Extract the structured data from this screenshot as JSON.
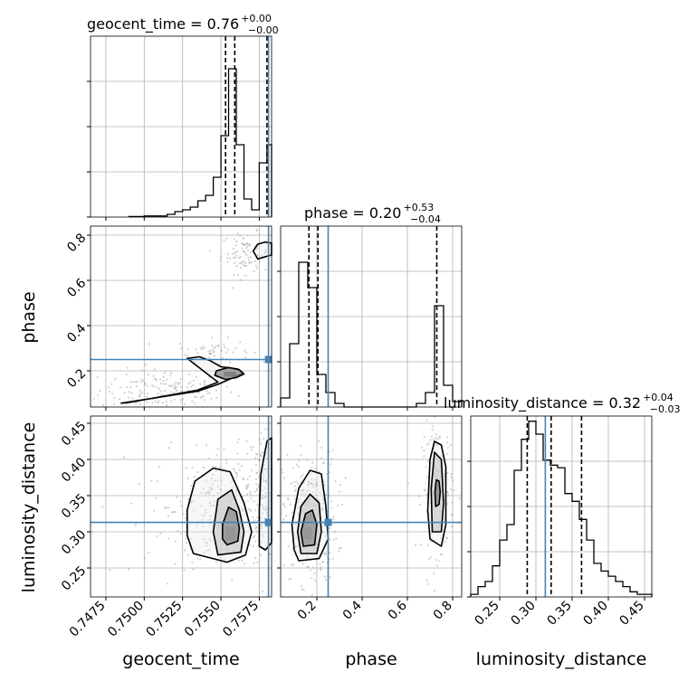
{
  "colors": {
    "truth": "#4682b4",
    "hist": "#000000",
    "grid": "#b0b0b0",
    "contour": "#000000",
    "samples": "#9a9a9a"
  },
  "titles": {
    "geocent_time": {
      "main": "geocent_time = 0.76",
      "plus": "+0.00",
      "minus": "−0.00"
    },
    "phase": {
      "main": "phase = 0.20",
      "plus": "+0.53",
      "minus": "−0.04"
    },
    "luminosity_distance": {
      "main": "luminosity_distance = 0.32",
      "plus": "+0.04",
      "minus": "−0.03"
    }
  },
  "chart_data": {
    "type": "corner",
    "parameters": [
      "geocent_time",
      "phase",
      "luminosity_distance"
    ],
    "axis_labels": {
      "x": [
        "geocent_time",
        "phase",
        "luminosity_distance"
      ],
      "y": [
        "phase",
        "luminosity_distance"
      ]
    },
    "ranges": {
      "geocent_time": [
        0.7465,
        0.7583
      ],
      "phase": [
        0.04,
        0.84
      ],
      "luminosity_distance": [
        0.21,
        0.46
      ]
    },
    "ticks": {
      "geocent_time": {
        "values": [
          0.7475,
          0.75,
          0.7525,
          0.755,
          0.7575
        ],
        "labels": [
          "0.7475",
          "0.7500",
          "0.7525",
          "0.7550",
          "0.7575"
        ]
      },
      "phase": {
        "values": [
          0.2,
          0.4,
          0.6,
          0.8
        ],
        "labels": [
          "0.2",
          "0.4",
          "0.6",
          "0.8"
        ]
      },
      "luminosity_distance": {
        "values": [
          0.25,
          0.3,
          0.35,
          0.4,
          0.45
        ],
        "labels": [
          "0.25",
          "0.30",
          "0.35",
          "0.40",
          "0.45"
        ]
      }
    },
    "truths": {
      "geocent_time": 0.7581,
      "phase": 0.25,
      "luminosity_distance": 0.313
    },
    "quantiles": {
      "geocent_time": [
        0.7553,
        0.7559,
        0.758
      ],
      "phase": [
        0.165,
        0.205,
        0.73
      ],
      "luminosity_distance": [
        0.288,
        0.321,
        0.363
      ]
    },
    "histograms": {
      "geocent_time": {
        "edges": [
          0.749,
          0.7495,
          0.75,
          0.7505,
          0.751,
          0.7515,
          0.752,
          0.7525,
          0.753,
          0.7535,
          0.754,
          0.7545,
          0.755,
          0.7555,
          0.756,
          0.7565,
          0.757,
          0.7575,
          0.758,
          0.7585
        ],
        "counts": [
          0.3,
          0.3,
          0.6,
          0.6,
          0.6,
          1.5,
          3.0,
          4.0,
          5.5,
          9.0,
          12.0,
          22.0,
          45.0,
          82.0,
          40.0,
          10.0,
          4.0,
          30.0,
          40.0
        ],
        "ymax": 100
      },
      "phase": {
        "edges": [
          0.04,
          0.08,
          0.12,
          0.16,
          0.2,
          0.24,
          0.28,
          0.32,
          0.36,
          0.4,
          0.44,
          0.48,
          0.52,
          0.56,
          0.6,
          0.64,
          0.68,
          0.72,
          0.76,
          0.8,
          0.84
        ],
        "counts": [
          5,
          35,
          80,
          66,
          18,
          8,
          2,
          0,
          0,
          0,
          0,
          0,
          0,
          0,
          0,
          2,
          8,
          56,
          12,
          3
        ],
        "ymax": 100
      },
      "luminosity_distance": {
        "edges": [
          0.21,
          0.22,
          0.23,
          0.24,
          0.25,
          0.26,
          0.27,
          0.28,
          0.29,
          0.3,
          0.31,
          0.32,
          0.33,
          0.34,
          0.35,
          0.36,
          0.37,
          0.38,
          0.39,
          0.4,
          0.41,
          0.42,
          0.43,
          0.44,
          0.45,
          0.46
        ],
        "counts": [
          1,
          4,
          6,
          12,
          22,
          28,
          49,
          61,
          68,
          63,
          53,
          51,
          50,
          40,
          37,
          30,
          22,
          13,
          10,
          8,
          6,
          4,
          2,
          1,
          1
        ],
        "ymax": 70
      }
    },
    "panels": [
      {
        "x": "geocent_time",
        "y": "phase",
        "contours": [
          {
            "level": "outer",
            "points": [
              [
                0.7485,
                0.057
              ],
              [
                0.7535,
                0.11
              ],
              [
                0.7548,
                0.14
              ],
              [
                0.7558,
                0.17
              ],
              [
                0.7564,
                0.19
              ],
              [
                0.7561,
                0.208
              ],
              [
                0.755,
                0.218
              ],
              [
                0.7543,
                0.245
              ],
              [
                0.7536,
                0.262
              ],
              [
                0.7528,
                0.255
              ],
              [
                0.7548,
                0.15
              ],
              [
                0.7535,
                0.115
              ],
              [
                0.749,
                0.06
              ]
            ]
          },
          {
            "level": "inner",
            "points": [
              [
                0.7553,
                0.162
              ],
              [
                0.756,
                0.17
              ],
              [
                0.7565,
                0.186
              ],
              [
                0.7562,
                0.205
              ],
              [
                0.7555,
                0.215
              ],
              [
                0.7547,
                0.2
              ],
              [
                0.7546,
                0.18
              ]
            ]
          },
          {
            "level": "upper",
            "points": [
              [
                0.7574,
                0.695
              ],
              [
                0.7579,
                0.705
              ],
              [
                0.7584,
                0.712
              ],
              [
                0.7584,
                0.765
              ],
              [
                0.7579,
                0.77
              ],
              [
                0.7574,
                0.76
              ],
              [
                0.7571,
                0.73
              ]
            ]
          }
        ],
        "dense_bins": [
          [
            0.7556,
            0.185,
            0.0008,
            0.022
          ]
        ],
        "scatter": [
          {
            "center": [
              0.7515,
              0.115
            ],
            "spread": [
              0.0022,
              0.045
            ],
            "count": 160
          },
          {
            "center": [
              0.7545,
              0.29
            ],
            "spread": [
              0.0012,
              0.025
            ],
            "count": 50
          },
          {
            "center": [
              0.7566,
              0.72
            ],
            "spread": [
              0.0008,
              0.045
            ],
            "count": 90
          }
        ]
      },
      {
        "x": "geocent_time",
        "y": "luminosity_distance",
        "contours": [
          {
            "level": "outer",
            "points": [
              [
                0.7532,
                0.27
              ],
              [
                0.7554,
                0.258
              ],
              [
                0.7566,
                0.268
              ],
              [
                0.757,
                0.3
              ],
              [
                0.7565,
                0.34
              ],
              [
                0.7556,
                0.383
              ],
              [
                0.7545,
                0.388
              ],
              [
                0.7533,
                0.37
              ],
              [
                0.7528,
                0.33
              ],
              [
                0.7528,
                0.295
              ]
            ]
          },
          {
            "level": "middle",
            "points": [
              [
                0.7548,
                0.268
              ],
              [
                0.7563,
                0.272
              ],
              [
                0.7565,
                0.3
              ],
              [
                0.7562,
                0.33
              ],
              [
                0.7557,
                0.358
              ],
              [
                0.7548,
                0.345
              ],
              [
                0.7545,
                0.3
              ]
            ]
          },
          {
            "level": "inner",
            "points": [
              [
                0.7554,
                0.282
              ],
              [
                0.7561,
                0.287
              ],
              [
                0.7562,
                0.305
              ],
              [
                0.756,
                0.328
              ],
              [
                0.7555,
                0.334
              ],
              [
                0.7551,
                0.31
              ],
              [
                0.7551,
                0.29
              ]
            ]
          },
          {
            "level": "edge",
            "points": [
              [
                0.7575,
                0.28
              ],
              [
                0.7579,
                0.275
              ],
              [
                0.7584,
                0.285
              ],
              [
                0.7584,
                0.43
              ],
              [
                0.758,
                0.425
              ],
              [
                0.7576,
                0.38
              ],
              [
                0.7575,
                0.33
              ]
            ]
          }
        ],
        "dense_bins": [
          [
            0.7556,
            0.298,
            0.0007,
            0.018
          ]
        ],
        "scatter": [
          {
            "center": [
              0.7556,
              0.33
            ],
            "spread": [
              0.0018,
              0.04
            ],
            "count": 260
          },
          {
            "center": [
              0.7578,
              0.36
            ],
            "spread": [
              0.0005,
              0.05
            ],
            "count": 100
          },
          {
            "center": [
              0.752,
              0.33
            ],
            "spread": [
              0.0025,
              0.05
            ],
            "count": 50
          }
        ]
      },
      {
        "x": "phase",
        "y": "luminosity_distance",
        "contours": [
          {
            "level": "outer",
            "points": [
              [
                0.12,
                0.26
              ],
              [
                0.21,
                0.263
              ],
              [
                0.25,
                0.29
              ],
              [
                0.24,
                0.335
              ],
              [
                0.22,
                0.38
              ],
              [
                0.17,
                0.385
              ],
              [
                0.12,
                0.36
              ],
              [
                0.09,
                0.31
              ],
              [
                0.1,
                0.275
              ]
            ]
          },
          {
            "level": "middle",
            "points": [
              [
                0.13,
                0.27
              ],
              [
                0.2,
                0.27
              ],
              [
                0.22,
                0.3
              ],
              [
                0.21,
                0.34
              ],
              [
                0.17,
                0.352
              ],
              [
                0.13,
                0.335
              ],
              [
                0.115,
                0.3
              ]
            ]
          },
          {
            "level": "inner",
            "points": [
              [
                0.14,
                0.28
              ],
              [
                0.19,
                0.282
              ],
              [
                0.2,
                0.31
              ],
              [
                0.18,
                0.33
              ],
              [
                0.15,
                0.325
              ],
              [
                0.13,
                0.3
              ]
            ]
          },
          {
            "level": "upper-outer",
            "points": [
              [
                0.7,
                0.29
              ],
              [
                0.75,
                0.28
              ],
              [
                0.77,
                0.31
              ],
              [
                0.77,
                0.39
              ],
              [
                0.75,
                0.42
              ],
              [
                0.72,
                0.425
              ],
              [
                0.7,
                0.4
              ],
              [
                0.69,
                0.33
              ]
            ]
          },
          {
            "level": "upper-mid",
            "points": [
              [
                0.71,
                0.3
              ],
              [
                0.75,
                0.3
              ],
              [
                0.76,
                0.34
              ],
              [
                0.75,
                0.4
              ],
              [
                0.72,
                0.41
              ],
              [
                0.705,
                0.36
              ]
            ]
          },
          {
            "level": "upper-inner",
            "points": [
              [
                0.725,
                0.335
              ],
              [
                0.74,
                0.338
              ],
              [
                0.745,
                0.355
              ],
              [
                0.74,
                0.37
              ],
              [
                0.728,
                0.372
              ],
              [
                0.722,
                0.355
              ]
            ]
          }
        ],
        "dense_bins": [
          [
            0.16,
            0.298,
            0.035,
            0.016
          ],
          [
            0.733,
            0.357,
            0.012,
            0.018
          ]
        ],
        "scatter": [
          {
            "center": [
              0.17,
              0.32
            ],
            "spread": [
              0.06,
              0.045
            ],
            "count": 280
          },
          {
            "center": [
              0.735,
              0.36
            ],
            "spread": [
              0.035,
              0.045
            ],
            "count": 180
          }
        ]
      }
    ]
  }
}
